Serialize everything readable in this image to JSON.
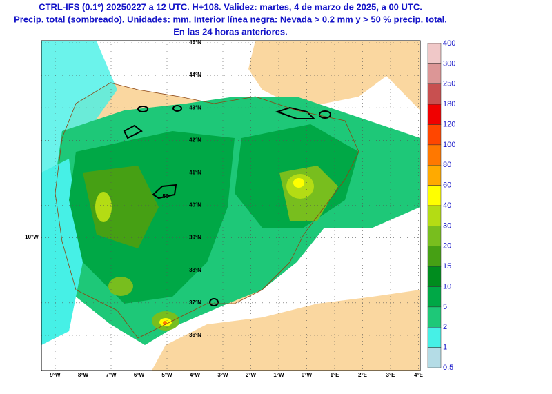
{
  "header": {
    "title": [
      "CTRL-IFS (0.1º) 20250227 a 12 UTC. H+108. Validez: martes, 4 de marzo de 2025, a 00 UTC.",
      "Precip. total (sombreado). Unidades: mm. Interior línea negra: Nevada > 0.2 mm y > 50 % precip. total.",
      "En las 24 horas anteriores."
    ]
  },
  "map": {
    "lat_labels": [
      "45°N",
      "44°N",
      "43°N",
      "42°N",
      "41°N",
      "40°N",
      "39°N",
      "38°N",
      "37°N",
      "36°N"
    ],
    "lon_labels": [
      "9°W",
      "8°W",
      "7°W",
      "6°W",
      "5°W",
      "4°W",
      "3°W",
      "2°W",
      "1°W",
      "0°W",
      "1°E",
      "2°E",
      "3°E",
      "4°E"
    ],
    "west_label": "10°W",
    "contour_label": "50"
  },
  "colorbar": {
    "levels": [
      400,
      300,
      250,
      180,
      120,
      100,
      80,
      60,
      40,
      30,
      20,
      15,
      10,
      5,
      2,
      1,
      0.5
    ],
    "colors": [
      "#f0c8c8",
      "#dc9696",
      "#c85050",
      "#f00000",
      "#ff4600",
      "#ff7800",
      "#ffaa00",
      "#ffff00",
      "#b4dc14",
      "#78be1e",
      "#46a014",
      "#008c1e",
      "#00a846",
      "#1ec878",
      "#46f0e6",
      "#b4dce6"
    ]
  }
}
